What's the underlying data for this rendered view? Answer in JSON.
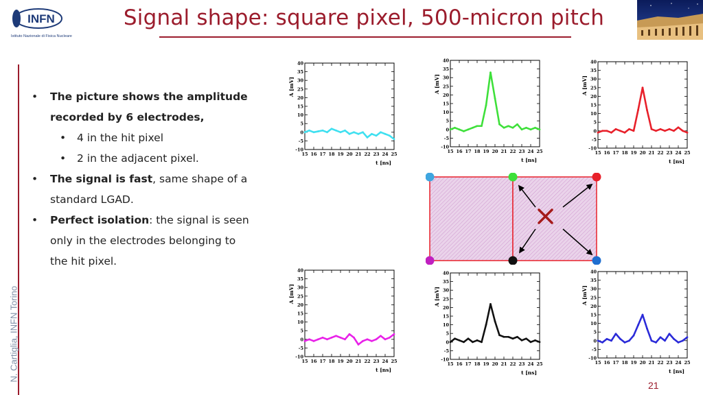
{
  "header": {
    "title": "Signal shape: square pixel, 500-micron pitch",
    "logo_text": "INFN",
    "logo_subtitle": "Istituto Nazionale di Fisica Nucleare"
  },
  "sidebar": {
    "author": "N. Cartiglia, INFN Torino"
  },
  "page_number": "21",
  "bullets": [
    {
      "level": 1,
      "segments": [
        {
          "text": "The picture shows the amplitude",
          "bold": true
        }
      ]
    },
    {
      "level": 0,
      "segments": [
        {
          "text": "recorded by 6 electrodes,",
          "bold": true
        }
      ]
    },
    {
      "level": 2,
      "segments": [
        {
          "text": "4 in the hit pixel",
          "bold": false
        }
      ]
    },
    {
      "level": 2,
      "segments": [
        {
          "text": "2 in the adjacent pixel.",
          "bold": false
        }
      ]
    },
    {
      "level": 1,
      "segments": [
        {
          "text": "The signal is fast",
          "bold": true
        },
        {
          "text": ", same shape of a",
          "bold": false
        }
      ]
    },
    {
      "level": 0,
      "segments": [
        {
          "text": "standard LGAD.",
          "bold": false
        }
      ]
    },
    {
      "level": 1,
      "segments": [
        {
          "text": "Perfect isolation",
          "bold": true
        },
        {
          "text": ": the signal is seen",
          "bold": false
        }
      ]
    },
    {
      "level": 0,
      "segments": [
        {
          "text": "only in the electrodes belonging to",
          "bold": false
        }
      ]
    },
    {
      "level": 0,
      "segments": [
        {
          "text": "the hit pixel.",
          "bold": false
        }
      ]
    }
  ],
  "chart_data": [
    {
      "type": "line",
      "color": "#3fe0f0",
      "xlabel": "t [ns]",
      "ylabel": "A [mV]",
      "xlim": [
        15,
        25
      ],
      "ylim": [
        -10,
        40
      ],
      "xticks": [
        15,
        16,
        17,
        18,
        19,
        20,
        21,
        22,
        23,
        24,
        25
      ],
      "yticks": [
        -10,
        -5,
        0,
        5,
        10,
        15,
        20,
        25,
        30,
        35,
        40
      ],
      "x": [
        15,
        15.5,
        16,
        16.5,
        17,
        17.5,
        18,
        18.5,
        19,
        19.5,
        20,
        20.5,
        21,
        21.5,
        22,
        22.5,
        23,
        23.5,
        24,
        24.5,
        25
      ],
      "y": [
        0,
        1,
        0,
        0.5,
        1,
        0,
        2,
        1,
        0,
        1,
        -1,
        0,
        -1,
        0,
        -3,
        -1,
        -2,
        0,
        -1,
        -2,
        -4
      ]
    },
    {
      "type": "line",
      "color": "#3ee03a",
      "xlabel": "t [ns]",
      "ylabel": "A [mV]",
      "xlim": [
        15,
        25
      ],
      "ylim": [
        -10,
        40
      ],
      "xticks": [
        15,
        16,
        17,
        18,
        19,
        20,
        21,
        22,
        23,
        24,
        25
      ],
      "yticks": [
        -10,
        -5,
        0,
        5,
        10,
        15,
        20,
        25,
        30,
        35,
        40
      ],
      "x": [
        15,
        15.5,
        16,
        16.5,
        17,
        17.5,
        18,
        18.5,
        19,
        19.5,
        20,
        20.5,
        21,
        21.5,
        22,
        22.5,
        23,
        23.5,
        24,
        24.5,
        25
      ],
      "y": [
        0,
        1,
        0,
        -1,
        0,
        1,
        2,
        2,
        14,
        33,
        18,
        3,
        1,
        2,
        1,
        3,
        0,
        1,
        0,
        1,
        0
      ]
    },
    {
      "type": "line",
      "color": "#e8202a",
      "xlabel": "t [ns]",
      "ylabel": "A [mV]",
      "xlim": [
        15,
        25
      ],
      "ylim": [
        -10,
        40
      ],
      "xticks": [
        15,
        16,
        17,
        18,
        19,
        20,
        21,
        22,
        23,
        24,
        25
      ],
      "yticks": [
        -10,
        -5,
        0,
        5,
        10,
        15,
        20,
        25,
        30,
        35,
        40
      ],
      "x": [
        15,
        15.5,
        16,
        16.5,
        17,
        17.5,
        18,
        18.5,
        19,
        19.5,
        20,
        20.5,
        21,
        21.5,
        22,
        22.5,
        23,
        23.5,
        24,
        24.5,
        25
      ],
      "y": [
        -1,
        0,
        0,
        -1,
        1,
        0,
        -1,
        1,
        0,
        12,
        25,
        12,
        1,
        0,
        1,
        0,
        1,
        0,
        2,
        0,
        -1
      ]
    },
    {
      "type": "line",
      "color": "#e820e8",
      "xlabel": "t [ns]",
      "ylabel": "A [mV]",
      "xlim": [
        15,
        25
      ],
      "ylim": [
        -10,
        40
      ],
      "xticks": [
        15,
        16,
        17,
        18,
        19,
        20,
        21,
        22,
        23,
        24,
        25
      ],
      "yticks": [
        -10,
        -5,
        0,
        5,
        10,
        15,
        20,
        25,
        30,
        35,
        40
      ],
      "x": [
        15,
        15.5,
        16,
        16.5,
        17,
        17.5,
        18,
        18.5,
        19,
        19.5,
        20,
        20.5,
        21,
        21.5,
        22,
        22.5,
        23,
        23.5,
        24,
        24.5,
        25
      ],
      "y": [
        -1,
        0,
        -1,
        0,
        1,
        0,
        1,
        2,
        1,
        0,
        3,
        1,
        -3,
        -1,
        0,
        -1,
        0,
        2,
        0,
        1,
        3
      ]
    },
    {
      "type": "line",
      "color": "#111111",
      "xlabel": "t [ns]",
      "ylabel": "A [mV]",
      "xlim": [
        15,
        25
      ],
      "ylim": [
        -10,
        40
      ],
      "xticks": [
        15,
        16,
        17,
        18,
        19,
        20,
        21,
        22,
        23,
        24,
        25
      ],
      "yticks": [
        -10,
        -5,
        0,
        5,
        10,
        15,
        20,
        25,
        30,
        35,
        40
      ],
      "x": [
        15,
        15.5,
        16,
        16.5,
        17,
        17.5,
        18,
        18.5,
        19,
        19.5,
        20,
        20.5,
        21,
        21.5,
        22,
        22.5,
        23,
        23.5,
        24,
        24.5,
        25
      ],
      "y": [
        0,
        2,
        1,
        0,
        2,
        0,
        1,
        0,
        10,
        22,
        12,
        4,
        3,
        3,
        2,
        3,
        1,
        2,
        0,
        1,
        0
      ]
    },
    {
      "type": "line",
      "color": "#2a2ad8",
      "xlabel": "t [ns]",
      "ylabel": "A [mV]",
      "xlim": [
        15,
        25
      ],
      "ylim": [
        -10,
        40
      ],
      "xticks": [
        15,
        16,
        17,
        18,
        19,
        20,
        21,
        22,
        23,
        24,
        25
      ],
      "yticks": [
        -10,
        -5,
        0,
        5,
        10,
        15,
        20,
        25,
        30,
        35,
        40
      ],
      "x": [
        15,
        15.5,
        16,
        16.5,
        17,
        17.5,
        18,
        18.5,
        19,
        19.5,
        20,
        20.5,
        21,
        21.5,
        22,
        22.5,
        23,
        23.5,
        24,
        24.5,
        25
      ],
      "y": [
        0,
        -1,
        1,
        0,
        4,
        1,
        -1,
        0,
        3,
        9,
        15,
        7,
        0,
        -1,
        2,
        0,
        4,
        1,
        -1,
        0,
        2
      ]
    }
  ],
  "diagram": {
    "pad_fill": "#e8cde6",
    "pad_stroke": "#e8202a",
    "electrode_colors": [
      "#3fa6e0",
      "#3ee03a",
      "#e8202a",
      "#c020c0",
      "#111111",
      "#1f6fd0"
    ],
    "cross_color": "#a51a1a",
    "arrow_color": "#000000"
  }
}
